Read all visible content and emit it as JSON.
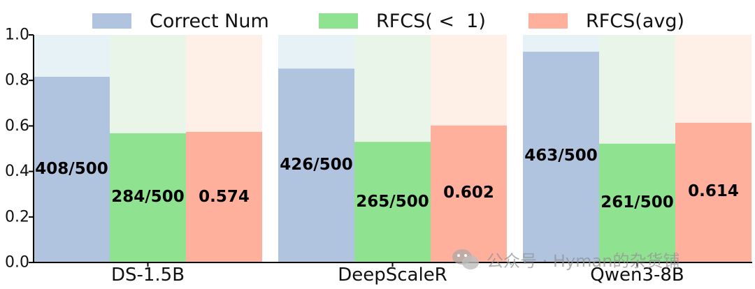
{
  "chart_data": {
    "type": "bar",
    "categories": [
      "DS-1.5B",
      "DeepScaleR",
      "Qwen3-8B"
    ],
    "series": [
      {
        "name": "Correct Num",
        "values": [
          0.816,
          0.852,
          0.926
        ],
        "labels": [
          "408/500",
          "426/500",
          "463/500"
        ],
        "color": "#b0c4e0",
        "bg_color": "#e6f2f5"
      },
      {
        "name": "RFCS( <  1)",
        "values": [
          0.568,
          0.53,
          0.522
        ],
        "labels": [
          "284/500",
          "265/500",
          "261/500"
        ],
        "color": "#8fe28f",
        "bg_color": "#e9f5e9"
      },
      {
        "name": "RFCS(avg)",
        "values": [
          0.574,
          0.602,
          0.614
        ],
        "labels": [
          "0.574",
          "0.602",
          "0.614"
        ],
        "color": "#ffb09c",
        "bg_color": "#fef0e6"
      }
    ],
    "ylim": [
      0,
      1.0
    ],
    "yticks": [
      "0.0",
      "0.2",
      "0.4",
      "0.6",
      "0.8",
      "1.0"
    ],
    "xlabel": "",
    "ylabel": "",
    "legend": "top",
    "grid": false
  },
  "watermark": {
    "text": "公众号 · Hyman的杂货铺",
    "icon": "wechat-icon"
  }
}
